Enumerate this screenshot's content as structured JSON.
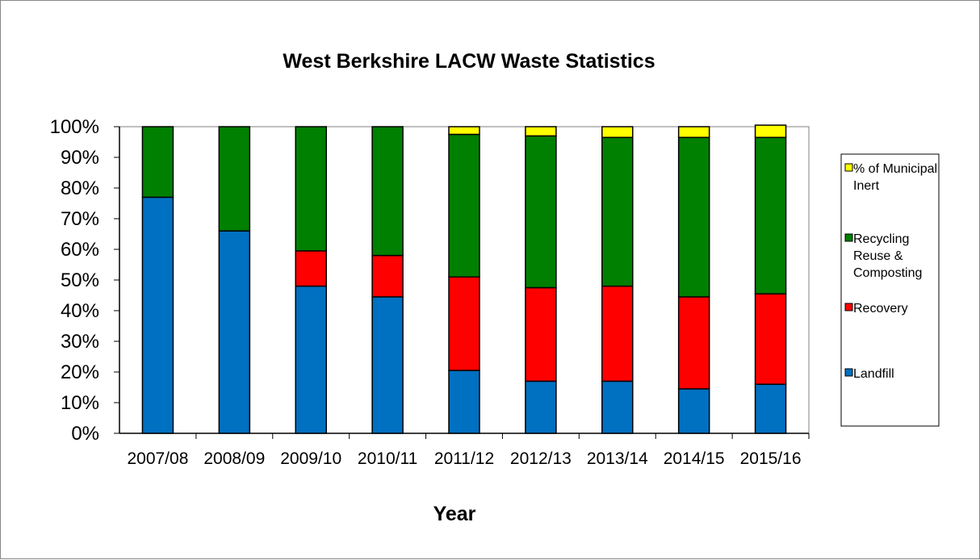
{
  "chart_data": {
    "type": "bar",
    "stacked": true,
    "percent": true,
    "title": "West Berkshire LACW Waste Statistics",
    "xlabel": "Year",
    "ylabel": "",
    "ylim": [
      0,
      100
    ],
    "yticks": [
      "0%",
      "10%",
      "20%",
      "30%",
      "40%",
      "50%",
      "60%",
      "70%",
      "80%",
      "90%",
      "100%"
    ],
    "categories": [
      "2007/08",
      "2008/09",
      "2009/10",
      "2010/11",
      "2011/12",
      "2012/13",
      "2013/14",
      "2014/15",
      "2015/16"
    ],
    "series": [
      {
        "name": "Landfill",
        "color": "#0070c0",
        "values": [
          77,
          66,
          48,
          44.5,
          20.5,
          17,
          17,
          14.5,
          16
        ]
      },
      {
        "name": "Recovery",
        "color": "#ff0000",
        "values": [
          0,
          0,
          11.5,
          13.5,
          30.5,
          30.5,
          31,
          30,
          29.5
        ]
      },
      {
        "name": "Recycling Reuse & Composting",
        "color": "#008000",
        "values": [
          23,
          34,
          40.5,
          42,
          46.5,
          49.5,
          48.5,
          52,
          51
        ]
      },
      {
        "name": "% of Municipal Inert",
        "color": "#ffff00",
        "values": [
          0,
          0,
          0,
          0,
          2.5,
          3,
          3.5,
          3.5,
          4
        ]
      }
    ],
    "legend": {
      "position": "right",
      "entries": [
        {
          "lines": [
            "% of Municipal",
            "Inert"
          ],
          "color": "#ffff00"
        },
        {
          "lines": [
            "Recycling",
            "Reuse &",
            "Composting"
          ],
          "color": "#008000"
        },
        {
          "lines": [
            "Recovery"
          ],
          "color": "#ff0000"
        },
        {
          "lines": [
            "Landfill"
          ],
          "color": "#0070c0"
        }
      ]
    },
    "grid": false
  }
}
